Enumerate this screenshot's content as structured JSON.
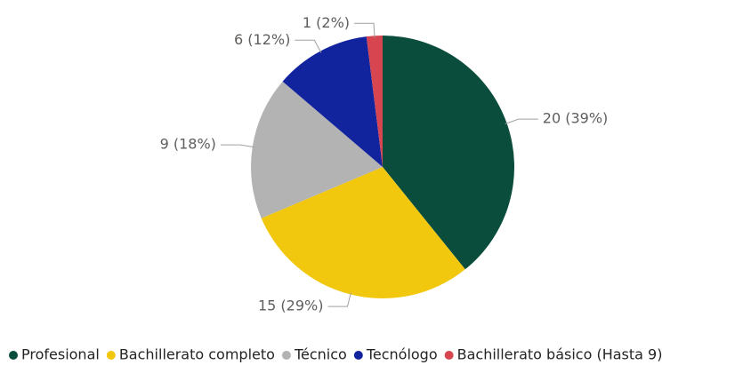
{
  "chart_data": {
    "type": "pie",
    "categories": [
      "Profesional",
      "Bachillerato completo",
      "Técnico",
      "Tecnólogo",
      "Bachillerato básico (Hasta 9)"
    ],
    "values": [
      20,
      15,
      9,
      6,
      1
    ],
    "value_labels": [
      "20 (39%)",
      "15 (29%)",
      "9 (18%)",
      "6 (12%)",
      "1 (2%)"
    ],
    "colors": [
      "#0a4d3c",
      "#f2c80f",
      "#b3b3b3",
      "#12239e",
      "#d64550"
    ],
    "legend": "bottom"
  }
}
